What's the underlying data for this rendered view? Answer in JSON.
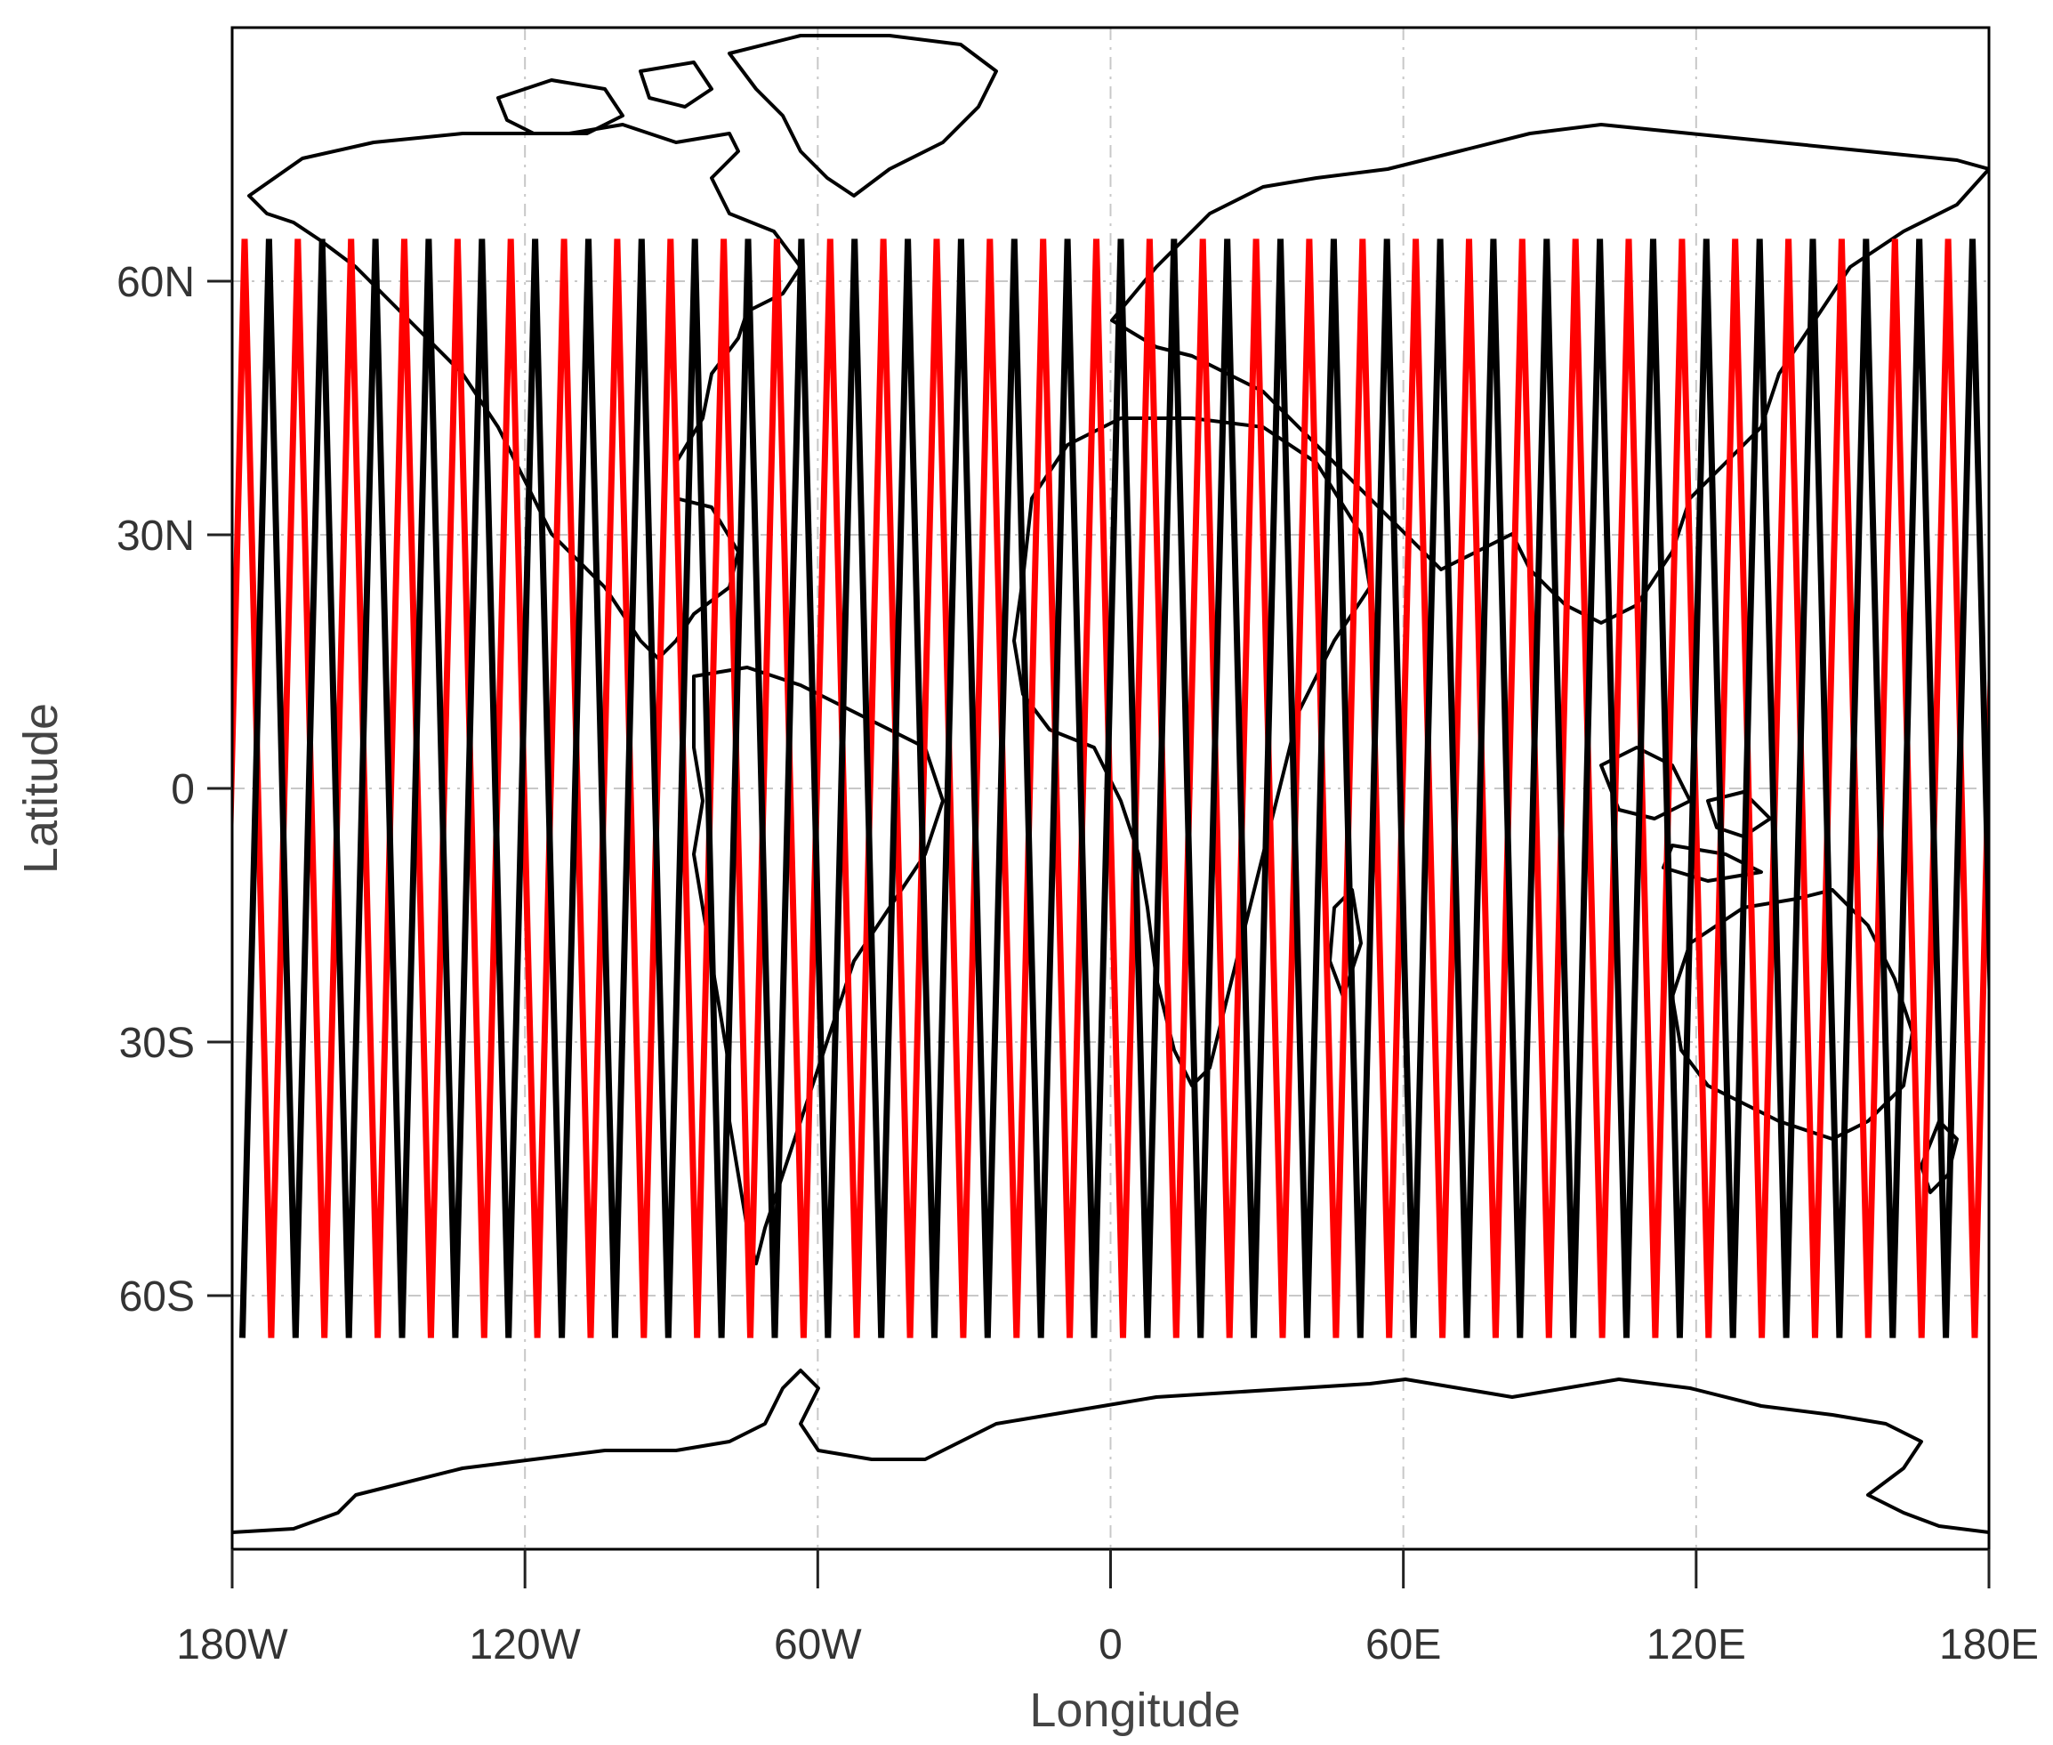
{
  "chart_data": {
    "type": "map",
    "projection": "equirectangular",
    "xlabel": "Longitude",
    "ylabel": "Latitude",
    "xlim": [
      -180,
      180
    ],
    "ylim": [
      -90,
      90
    ],
    "grid": true,
    "x_ticks": [
      {
        "value": -180,
        "label": "180W"
      },
      {
        "value": -120,
        "label": "120W"
      },
      {
        "value": -60,
        "label": "60W"
      },
      {
        "value": 0,
        "label": "0"
      },
      {
        "value": 60,
        "label": "60E"
      },
      {
        "value": 120,
        "label": "120E"
      },
      {
        "value": 180,
        "label": "180E"
      }
    ],
    "y_ticks": [
      {
        "value": 60,
        "label": "60N"
      },
      {
        "value": 30,
        "label": "30N"
      },
      {
        "value": 0,
        "label": "0"
      },
      {
        "value": -30,
        "label": "30S"
      },
      {
        "value": -60,
        "label": "60S"
      }
    ],
    "series": [
      {
        "color": "#ff0000",
        "latitude_range": [
          -65,
          65
        ],
        "track_count": 33,
        "first_ascending_node_lon": -172
      },
      {
        "color": "#000000",
        "latitude_range": [
          -65,
          65
        ],
        "track_count": 33,
        "first_ascending_node_lon": -167
      }
    ],
    "colors": {
      "coastline": "#000000",
      "grid": "#c8c8c8",
      "frame": "#000000"
    }
  }
}
